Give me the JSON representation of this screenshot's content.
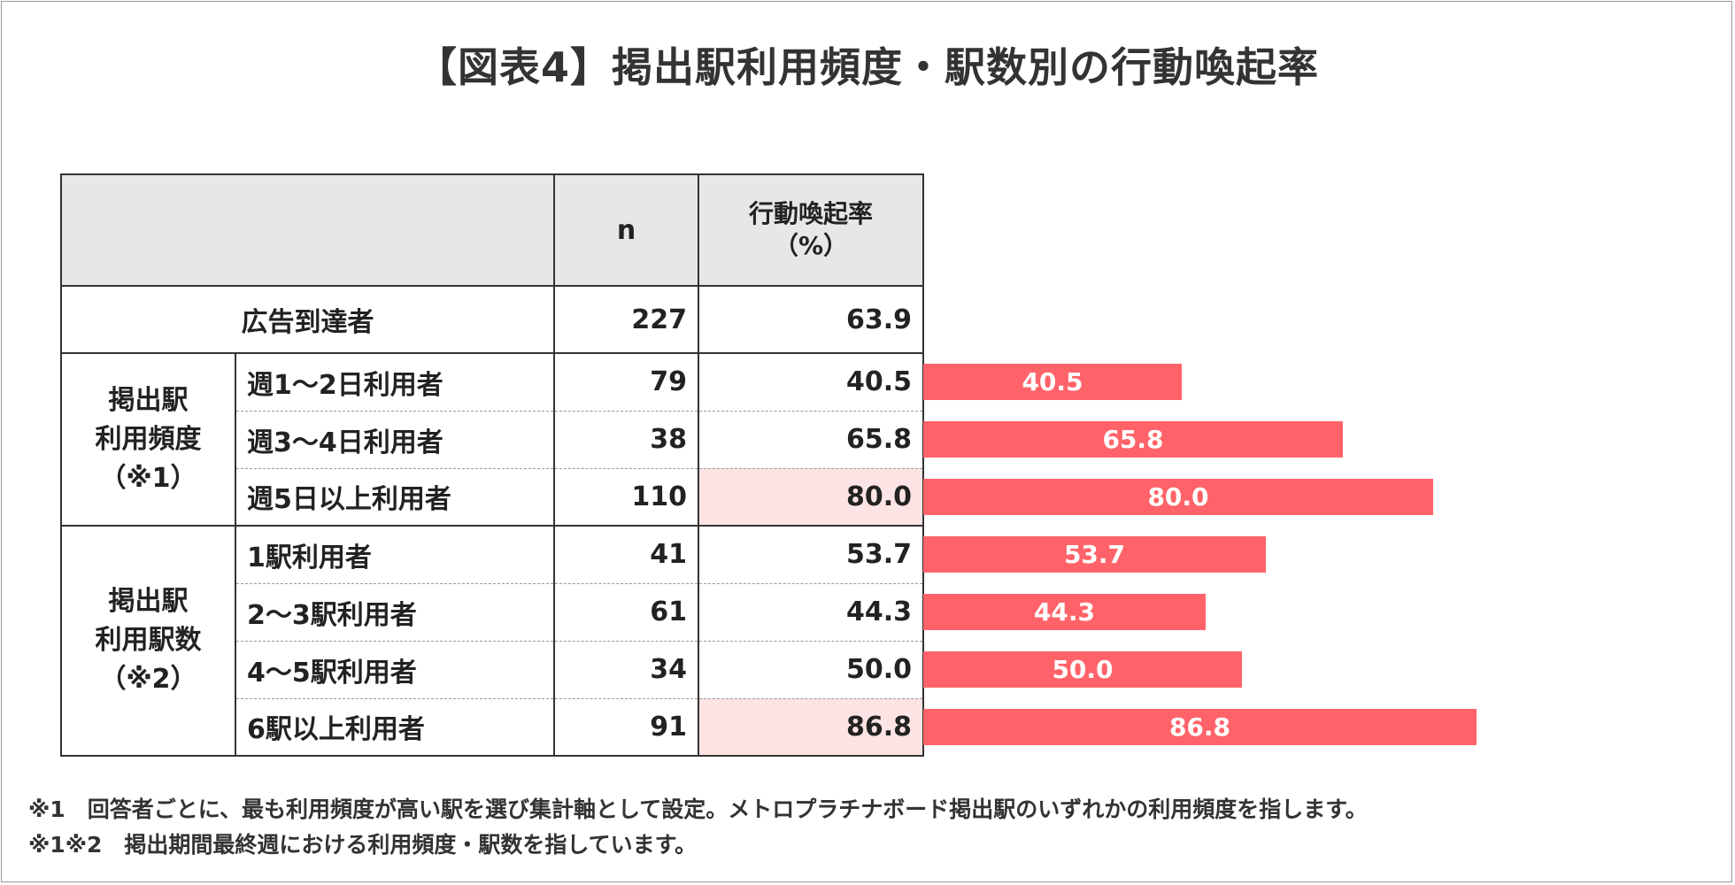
{
  "title": "【図表4】掲出駅利用頻度・駅数別の行動喚起率",
  "table": {
    "header": {
      "n": "n",
      "rate_line1": "行動喚起率",
      "rate_line2": "（%）"
    },
    "total": {
      "label": "広告到達者",
      "n": "227",
      "rate": "63.9"
    },
    "groups": [
      {
        "label_lines": [
          "掲出駅",
          "利用頻度",
          "（※1）"
        ],
        "rows": [
          {
            "label": "週1～2日利用者",
            "n": "79",
            "rate": "40.5"
          },
          {
            "label": "週3～4日利用者",
            "n": "38",
            "rate": "65.8"
          },
          {
            "label": "週5日以上利用者",
            "n": "110",
            "rate": "80.0"
          }
        ]
      },
      {
        "label_lines": [
          "掲出駅",
          "利用駅数",
          "（※2）"
        ],
        "rows": [
          {
            "label": "1駅利用者",
            "n": "41",
            "rate": "53.7"
          },
          {
            "label": "2～3駅利用者",
            "n": "61",
            "rate": "44.3"
          },
          {
            "label": "4～5駅利用者",
            "n": "34",
            "rate": "50.0"
          },
          {
            "label": "6駅以上利用者",
            "n": "91",
            "rate": "86.8"
          }
        ]
      }
    ]
  },
  "chart_data": {
    "type": "bar",
    "orientation": "horizontal",
    "title": "【図表4】掲出駅利用頻度・駅数別の行動喚起率",
    "categories": [
      "週1～2日利用者",
      "週3～4日利用者",
      "週5日以上利用者",
      "1駅利用者",
      "2～3駅利用者",
      "4～5駅利用者",
      "6駅以上利用者"
    ],
    "values": [
      40.5,
      65.8,
      80.0,
      53.7,
      44.3,
      50.0,
      86.8
    ],
    "value_labels": [
      "40.5",
      "65.8",
      "80.0",
      "53.7",
      "44.3",
      "50.0",
      "86.8"
    ],
    "xlim": [
      0,
      100
    ],
    "xlabel": "",
    "ylabel": "行動喚起率（%）",
    "highlight_color": "#fde4e4",
    "bar_color": "#ff6369"
  },
  "notes": [
    "※1　回答者ごとに、最も利用頻度が高い駅を選び集計軸として設定。メトロプラチナボード掲出駅のいずれかの利用頻度を指します。",
    "※1※2　掲出期間最終週における利用頻度・駅数を指しています。"
  ]
}
